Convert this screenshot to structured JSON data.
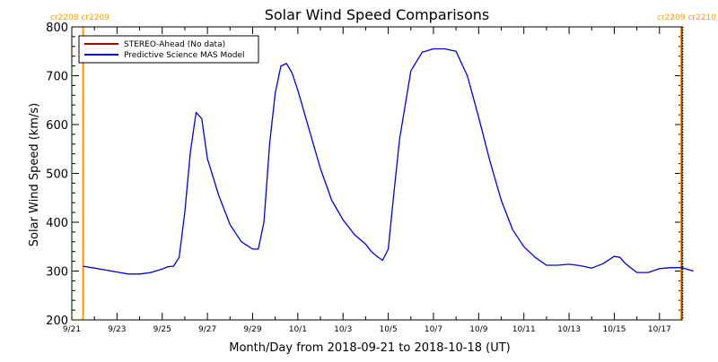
{
  "chart_data": {
    "type": "line",
    "title": "Solar Wind Speed Comparisons",
    "xlabel": "Month/Day from 2018-09-21 to 2018-10-18 (UT)",
    "ylabel": "Solar Wind Speed (km/s)",
    "xlim": [
      "2018-09-21",
      "2018-10-18"
    ],
    "ylim": [
      200,
      800
    ],
    "x_ticks": [
      {
        "date": "2018-09-21",
        "label": "9/21"
      },
      {
        "date": "2018-09-23",
        "label": "9/23"
      },
      {
        "date": "2018-09-25",
        "label": "9/25"
      },
      {
        "date": "2018-09-27",
        "label": "9/27"
      },
      {
        "date": "2018-09-29",
        "label": "9/29"
      },
      {
        "date": "2018-10-01",
        "label": "10/1"
      },
      {
        "date": "2018-10-03",
        "label": "10/3"
      },
      {
        "date": "2018-10-05",
        "label": "10/5"
      },
      {
        "date": "2018-10-07",
        "label": "10/7"
      },
      {
        "date": "2018-10-09",
        "label": "10/9"
      },
      {
        "date": "2018-10-11",
        "label": "10/11"
      },
      {
        "date": "2018-10-13",
        "label": "10/13"
      },
      {
        "date": "2018-10-15",
        "label": "10/15"
      },
      {
        "date": "2018-10-17",
        "label": "10/17"
      }
    ],
    "y_ticks": [
      200,
      300,
      400,
      500,
      600,
      700,
      800
    ],
    "legend": {
      "position": "top-left",
      "entries": [
        {
          "label": "STEREO-Ahead (No data)",
          "color": "#aa0000"
        },
        {
          "label": "Predictive Science MAS Model",
          "color": "#0000dd"
        }
      ]
    },
    "markers": [
      {
        "date": "2018-09-21 12:00",
        "label": "cr2208 cr2209",
        "color": "#ff9900",
        "side": "left"
      },
      {
        "date": "2018-10-17 23:00",
        "label": "cr2209 cr2210",
        "color": "#ff9900",
        "side": "right"
      }
    ],
    "series": [
      {
        "name": "STEREO-Ahead (No data)",
        "color": "#aa0000",
        "x": [],
        "y": []
      },
      {
        "name": "Predictive Science MAS Model",
        "color": "#0000dd",
        "x": [
          "2018-09-21 12:00",
          "2018-09-22 00:00",
          "2018-09-22 12:00",
          "2018-09-23 00:00",
          "2018-09-23 12:00",
          "2018-09-24 00:00",
          "2018-09-24 12:00",
          "2018-09-25 00:00",
          "2018-09-25 06:00",
          "2018-09-25 12:00",
          "2018-09-25 18:00",
          "2018-09-26 00:00",
          "2018-09-26 06:00",
          "2018-09-26 12:00",
          "2018-09-26 18:00",
          "2018-09-27 00:00",
          "2018-09-27 12:00",
          "2018-09-28 00:00",
          "2018-09-28 12:00",
          "2018-09-29 00:00",
          "2018-09-29 06:00",
          "2018-09-29 12:00",
          "2018-09-29 18:00",
          "2018-09-30 00:00",
          "2018-09-30 06:00",
          "2018-09-30 12:00",
          "2018-09-30 18:00",
          "2018-10-01 00:00",
          "2018-10-01 12:00",
          "2018-10-02 00:00",
          "2018-10-02 12:00",
          "2018-10-03 00:00",
          "2018-10-03 12:00",
          "2018-10-04 00:00",
          "2018-10-04 06:00",
          "2018-10-04 12:00",
          "2018-10-04 18:00",
          "2018-10-05 00:00",
          "2018-10-05 06:00",
          "2018-10-05 12:00",
          "2018-10-05 18:00",
          "2018-10-06 00:00",
          "2018-10-06 12:00",
          "2018-10-07 00:00",
          "2018-10-07 12:00",
          "2018-10-08 00:00",
          "2018-10-08 12:00",
          "2018-10-09 00:00",
          "2018-10-09 12:00",
          "2018-10-10 00:00",
          "2018-10-10 12:00",
          "2018-10-11 00:00",
          "2018-10-11 12:00",
          "2018-10-12 00:00",
          "2018-10-12 12:00",
          "2018-10-13 00:00",
          "2018-10-13 12:00",
          "2018-10-14 00:00",
          "2018-10-14 12:00",
          "2018-10-15 00:00",
          "2018-10-15 06:00",
          "2018-10-15 12:00",
          "2018-10-16 00:00",
          "2018-10-16 12:00",
          "2018-10-17 00:00",
          "2018-10-17 12:00",
          "2018-10-18 00:00",
          "2018-10-18 12:00"
        ],
        "y": [
          310,
          306,
          302,
          298,
          294,
          294,
          297,
          304,
          309,
          310,
          328,
          420,
          545,
          625,
          612,
          530,
          455,
          395,
          360,
          345,
          345,
          400,
          560,
          665,
          720,
          725,
          705,
          670,
          590,
          510,
          445,
          405,
          375,
          355,
          340,
          330,
          322,
          345,
          460,
          570,
          640,
          710,
          748,
          755,
          755,
          750,
          700,
          615,
          525,
          445,
          385,
          350,
          328,
          312,
          312,
          314,
          311,
          306,
          315,
          330,
          328,
          315,
          297,
          297,
          305,
          307,
          307,
          300
        ]
      }
    ]
  }
}
